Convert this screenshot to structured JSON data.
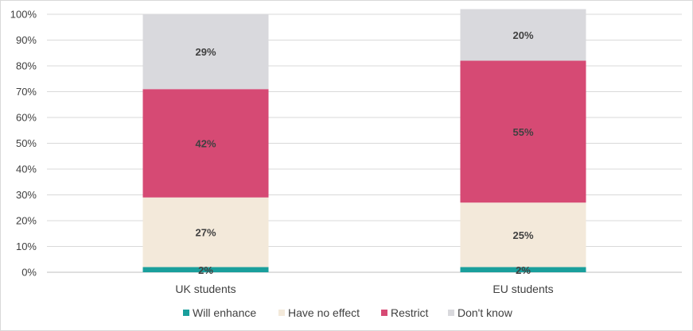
{
  "chart_data": {
    "type": "bar",
    "stacked": true,
    "categories": [
      "UK students",
      "EU students"
    ],
    "series": [
      {
        "name": "Will enhance",
        "values": [
          2,
          2
        ],
        "color": "#1a9f9c"
      },
      {
        "name": "Have no effect",
        "values": [
          27,
          25
        ],
        "color": "#f3e9da"
      },
      {
        "name": "Restrict",
        "values": [
          42,
          55
        ],
        "color": "#d64a74"
      },
      {
        "name": "Don't know",
        "values": [
          29,
          20
        ],
        "color": "#d9d9dd"
      }
    ],
    "data_labels": [
      [
        "2%",
        "2%"
      ],
      [
        "27%",
        "25%"
      ],
      [
        "42%",
        "55%"
      ],
      [
        "29%",
        "20%"
      ]
    ],
    "ylim": [
      0,
      100
    ],
    "yticks": [
      0,
      10,
      20,
      30,
      40,
      50,
      60,
      70,
      80,
      90,
      100
    ],
    "ytick_labels": [
      "0%",
      "10%",
      "20%",
      "30%",
      "40%",
      "50%",
      "60%",
      "70%",
      "80%",
      "90%",
      "100%"
    ],
    "grid": true,
    "legend_position": "bottom",
    "title": "",
    "xlabel": "",
    "ylabel": ""
  }
}
